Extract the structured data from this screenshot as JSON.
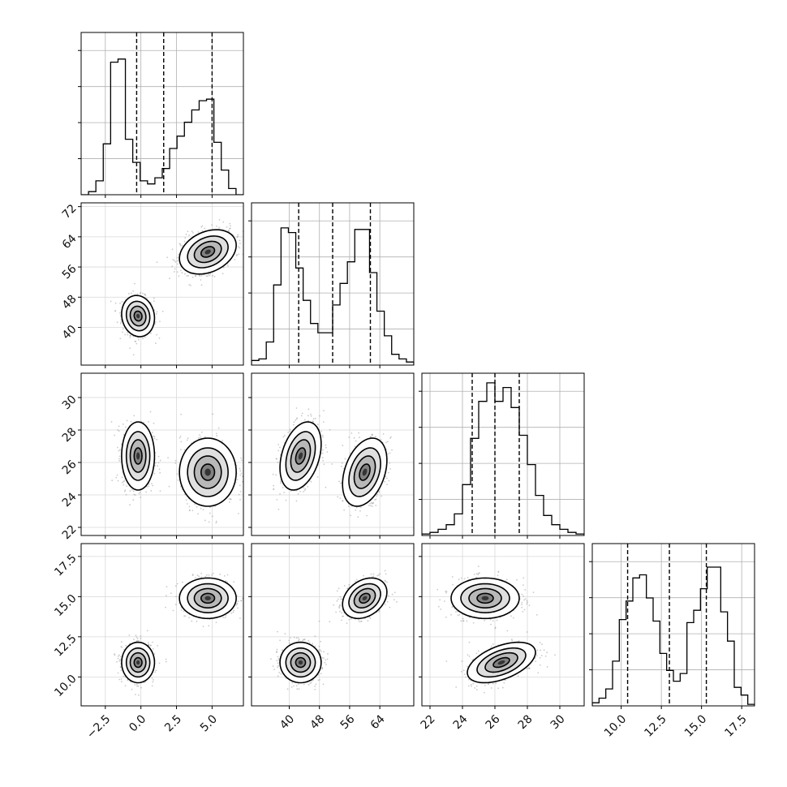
{
  "chart_data": {
    "type": "corner",
    "title": "",
    "parameters": [
      {
        "range": [
          -4.2,
          7.2
        ],
        "ticks": [
          -2.5,
          0.0,
          2.5,
          5.0
        ],
        "tick_labels": [
          "−2.5",
          "0.0",
          "2.5",
          "5.0"
        ],
        "quantile_lines": [
          -0.3,
          1.6,
          5.0
        ],
        "histogram": [
          0,
          0.02,
          0.09,
          0.33,
          0.86,
          0.88,
          0.36,
          0.21,
          0.09,
          0.07,
          0.11,
          0.17,
          0.3,
          0.38,
          0.47,
          0.55,
          0.61,
          0.62,
          0.34,
          0.16,
          0.04,
          0
        ]
      },
      {
        "range": [
          30,
          73
        ],
        "ticks": [
          40,
          48,
          56,
          64
        ],
        "tick_labels": [
          "40",
          "48",
          "56",
          "64"
        ],
        "quantile_lines": [
          42.5,
          51.5,
          61.5
        ],
        "histogram": [
          0.03,
          0.04,
          0.15,
          0.52,
          0.89,
          0.86,
          0.63,
          0.42,
          0.27,
          0.21,
          0.21,
          0.39,
          0.53,
          0.67,
          0.88,
          0.88,
          0.6,
          0.35,
          0.19,
          0.07,
          0.04,
          0.02
        ]
      },
      {
        "range": [
          21.5,
          31.5
        ],
        "ticks": [
          22,
          24,
          26,
          28,
          30
        ],
        "tick_labels": [
          "22",
          "24",
          "26",
          "28",
          "30"
        ],
        "quantile_lines": [
          24.6,
          26.0,
          27.5
        ],
        "histogram": [
          0.01,
          0.02,
          0.04,
          0.07,
          0.14,
          0.33,
          0.63,
          0.87,
          0.99,
          0.87,
          0.96,
          0.83,
          0.65,
          0.46,
          0.26,
          0.13,
          0.07,
          0.04,
          0.02,
          0.01
        ]
      },
      {
        "range": [
          8.2,
          18.3
        ],
        "ticks": [
          10.0,
          12.5,
          15.0,
          17.5
        ],
        "tick_labels": [
          "10.0",
          "12.5",
          "15.0",
          "17.5"
        ],
        "quantile_lines": [
          10.4,
          13.0,
          15.3
        ],
        "histogram": [
          0.02,
          0.05,
          0.11,
          0.29,
          0.56,
          0.68,
          0.83,
          0.85,
          0.7,
          0.55,
          0.34,
          0.23,
          0.16,
          0.21,
          0.54,
          0.62,
          0.76,
          0.9,
          0.9,
          0.61,
          0.42,
          0.12,
          0.07,
          0.01
        ]
      }
    ],
    "y_axis_ticks": {
      "1": {
        "ticks": [
          40,
          48,
          56,
          64,
          72
        ],
        "tick_labels": [
          "40",
          "48",
          "56",
          "64",
          "72"
        ]
      },
      "2": {
        "ticks": [
          22,
          24,
          26,
          28,
          30
        ],
        "tick_labels": [
          "22",
          "24",
          "26",
          "28",
          "30"
        ]
      },
      "3": {
        "ticks": [
          10.0,
          12.5,
          15.0,
          17.5
        ],
        "tick_labels": [
          "10.0",
          "12.5",
          "15.0",
          "17.5"
        ]
      }
    },
    "modes": [
      {
        "mean": [
          -0.2,
          43.0,
          26.4,
          10.9
        ],
        "sd": [
          0.55,
          2.6,
          1.0,
          0.6
        ],
        "corr_01": -0.1,
        "corr_02": 0.0,
        "corr_03": 0.0,
        "corr_12": 0.35,
        "corr_13": 0.0,
        "corr_23": 0.5,
        "weight": 0.5
      },
      {
        "mean": [
          4.7,
          60.0,
          25.4,
          14.9
        ],
        "sd": [
          0.95,
          2.8,
          1.0,
          0.6
        ],
        "corr_01": 0.3,
        "corr_02": 0.0,
        "corr_03": 0.0,
        "corr_12": 0.35,
        "corr_13": 0.3,
        "corr_23": 0.0,
        "weight": 0.5
      }
    ],
    "grid": true,
    "histogram_y_ticks": 4
  }
}
